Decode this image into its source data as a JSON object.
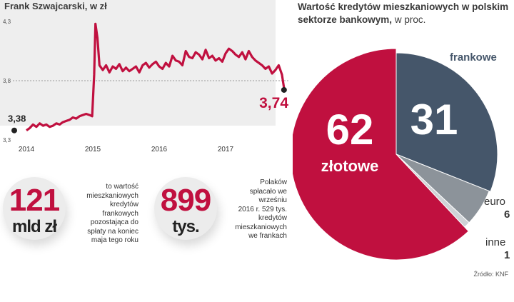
{
  "chart_data": [
    {
      "type": "line",
      "title": "Frank Szwajcarski, w zł",
      "y_ticks": [
        "4,3",
        "3,8",
        "3,3"
      ],
      "x_ticks": [
        "2014",
        "2015",
        "2016",
        "2017"
      ],
      "ylim": [
        3.3,
        4.3
      ],
      "reference_line": 3.8,
      "start_label": "3,38",
      "end_label": "3,74",
      "series": [
        {
          "x": [
            2014.0,
            2014.05,
            2014.1,
            2014.15,
            2014.2,
            2014.25,
            2014.3,
            2014.35,
            2014.4,
            2014.45,
            2014.5,
            2014.55,
            2014.6,
            2014.65,
            2014.7,
            2014.75,
            2014.8,
            2014.85,
            2014.9,
            2014.95,
            2014.99,
            2015.02,
            2015.04,
            2015.07,
            2015.1,
            2015.15,
            2015.2,
            2015.25,
            2015.3,
            2015.35,
            2015.4,
            2015.45,
            2015.5,
            2015.55,
            2015.6,
            2015.65,
            2015.7,
            2015.75,
            2015.8,
            2015.85,
            2015.9,
            2015.95,
            2016.0,
            2016.05,
            2016.1,
            2016.15,
            2016.2,
            2016.25,
            2016.3,
            2016.35,
            2016.4,
            2016.45,
            2016.5,
            2016.55,
            2016.6,
            2016.65,
            2016.7,
            2016.75,
            2016.8,
            2016.85,
            2016.9,
            2016.95,
            2017.0,
            2017.05,
            2017.1,
            2017.15,
            2017.2,
            2017.25,
            2017.3,
            2017.35,
            2017.4,
            2017.45,
            2017.5,
            2017.55,
            2017.6,
            2017.65,
            2017.7,
            2017.75,
            2017.8,
            2017.85,
            2017.88
          ],
          "values": [
            3.38,
            3.4,
            3.43,
            3.41,
            3.44,
            3.42,
            3.43,
            3.41,
            3.42,
            3.44,
            3.43,
            3.45,
            3.46,
            3.47,
            3.49,
            3.48,
            3.5,
            3.51,
            3.52,
            3.51,
            3.5,
            3.85,
            4.28,
            4.16,
            3.93,
            3.89,
            3.93,
            3.87,
            3.92,
            3.9,
            3.94,
            3.88,
            3.91,
            3.88,
            3.9,
            3.92,
            3.87,
            3.93,
            3.95,
            3.91,
            3.94,
            3.96,
            3.92,
            3.9,
            3.95,
            3.92,
            4.01,
            3.97,
            3.96,
            3.93,
            4.05,
            4.0,
            3.99,
            4.04,
            4.02,
            3.98,
            4.06,
            3.99,
            4.01,
            3.97,
            3.99,
            3.96,
            4.03,
            4.07,
            4.05,
            4.02,
            4.0,
            4.04,
            3.98,
            4.05,
            4.0,
            3.97,
            3.95,
            3.93,
            3.9,
            3.92,
            3.86,
            3.89,
            3.93,
            3.85,
            3.74
          ]
        }
      ]
    },
    {
      "type": "pie",
      "title": "Wartość kredytów mieszkaniowych w polskim sektorze bankowym,",
      "unit": "w proc.",
      "slices": [
        {
          "label": "złotowe",
          "value": 62,
          "color": "#c0103f"
        },
        {
          "label": "frankowe",
          "value": 31,
          "color": "#45566a"
        },
        {
          "label": "euro",
          "value": 6,
          "color": "#8c939a"
        },
        {
          "label": "inne",
          "value": 1,
          "color": "#cfd3d7"
        }
      ]
    }
  ],
  "stats": [
    {
      "number": "121",
      "unit": "mld zł",
      "lines": [
        "to wartość",
        "mieszkaniowych",
        "kredytów",
        "frankowych",
        "pozostająca do",
        "spłaty na koniec",
        "maja tego roku"
      ]
    },
    {
      "number": "899",
      "unit": "tys.",
      "lines": [
        "Polaków",
        "spłacało we",
        "wrześniu",
        "2016 r. 529 tys.",
        "kredytów",
        "mieszkaniowych",
        "we frankach"
      ]
    }
  ],
  "source": "Źródło: KNF"
}
